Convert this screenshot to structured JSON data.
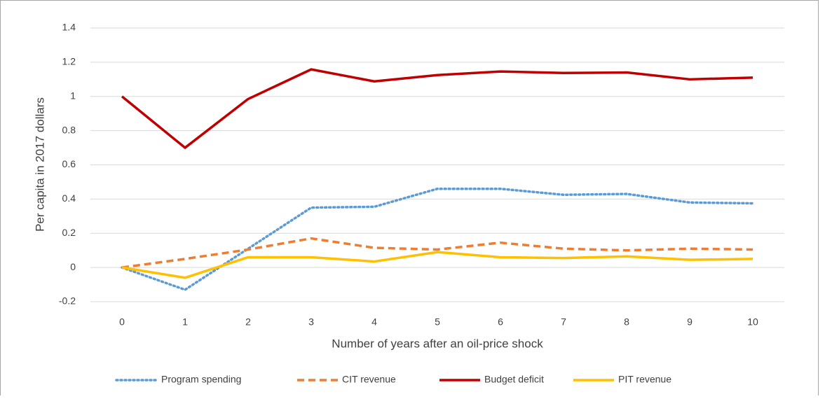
{
  "chart_data": {
    "type": "line",
    "x_label": "Number of years after an oil-price shock",
    "y_label": "Per capita in 2017 dollars",
    "categories": [
      "0",
      "1",
      "2",
      "3",
      "4",
      "5",
      "6",
      "7",
      "8",
      "9",
      "10"
    ],
    "series": [
      {
        "name": "Program spending",
        "color": "#5b9bd5",
        "dash": "dotted",
        "values": [
          0,
          -0.13,
          0.11,
          0.35,
          0.355,
          0.46,
          0.46,
          0.425,
          0.43,
          0.38,
          0.375
        ]
      },
      {
        "name": "CIT revenue",
        "color": "#ed7d31",
        "dash": "dashed",
        "values": [
          0,
          0.05,
          0.105,
          0.17,
          0.115,
          0.105,
          0.145,
          0.11,
          0.1,
          0.11,
          0.105
        ]
      },
      {
        "name": "Budget deficit",
        "color": "#c00000",
        "dash": "solid",
        "values": [
          1.0,
          0.7,
          0.985,
          1.158,
          1.088,
          1.125,
          1.146,
          1.137,
          1.14,
          1.1,
          1.11
        ]
      },
      {
        "name": "PIT revenue",
        "color": "#ffc000",
        "dash": "solid",
        "values": [
          0,
          -0.06,
          0.06,
          0.06,
          0.035,
          0.09,
          0.06,
          0.055,
          0.065,
          0.045,
          0.05
        ]
      }
    ],
    "ylim": [
      -0.2,
      1.4
    ],
    "yticks": [
      -0.2,
      0,
      0.2,
      0.4,
      0.6,
      0.8,
      1,
      1.2,
      1.4
    ],
    "grid": true,
    "legend": "bottom"
  }
}
